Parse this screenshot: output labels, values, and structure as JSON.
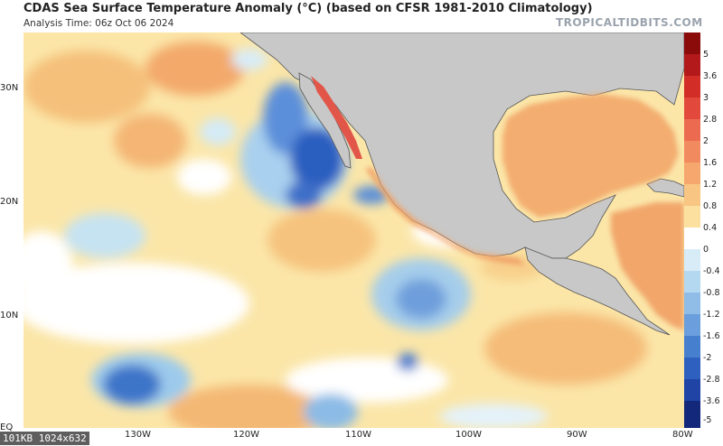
{
  "header": {
    "title": "CDAS Sea Surface Temperature Anomaly (°C) (based on CFSR 1981-2010 Climatology)",
    "analysis_time": "Analysis Time: 06z Oct 06 2024",
    "brand": "TROPICALTIDBITS.COM"
  },
  "map": {
    "lat_labels": [
      "30N",
      "20N",
      "10N",
      "EQ"
    ],
    "lon_labels": [
      "130W",
      "120W",
      "110W",
      "100W",
      "90W",
      "80W"
    ],
    "land_color": "#c8c8c8",
    "ocean_neutral_color": "#ffffff"
  },
  "colorbar": {
    "labels": [
      "5",
      "3.6",
      "3",
      "2.8",
      "2",
      "1.6",
      "1.2",
      "0.8",
      "0.4",
      "0",
      "-0.4",
      "-0.8",
      "-1.2",
      "-1.6",
      "-2",
      "-2.8",
      "-3.6",
      "-5"
    ]
  },
  "footer": {
    "info": "101KB 1024x632"
  }
}
